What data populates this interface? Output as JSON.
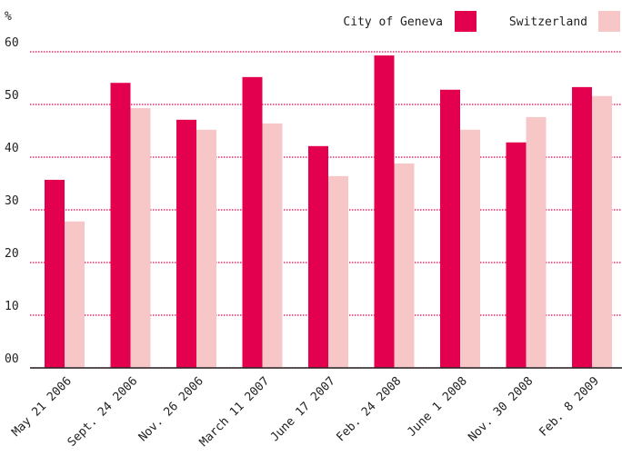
{
  "chart_data": {
    "type": "bar",
    "y_label": "%",
    "categories": [
      "May 21 2006",
      "Sept. 24 2006",
      "Nov. 26 2006",
      "March 11 2007",
      "June 17 2007",
      "Feb. 24 2008",
      "June 1 2008",
      "Nov. 30 2008",
      "Feb. 8 2009"
    ],
    "series": [
      {
        "name": "City of Geneva",
        "color": "#e2004f",
        "values": [
          35.7,
          54.1,
          47.1,
          55.2,
          42.1,
          59.3,
          52.8,
          42.8,
          53.3
        ]
      },
      {
        "name": "Switzerland",
        "color": "#f7c6c7",
        "values": [
          27.8,
          49.3,
          45.2,
          46.4,
          36.4,
          38.8,
          45.2,
          47.6,
          51.6
        ]
      }
    ],
    "ylim": [
      0,
      60
    ],
    "yticks": [
      {
        "value": 0,
        "label": "00"
      },
      10,
      20,
      30,
      40,
      50,
      60
    ],
    "grid": true,
    "legend": "top-right"
  }
}
